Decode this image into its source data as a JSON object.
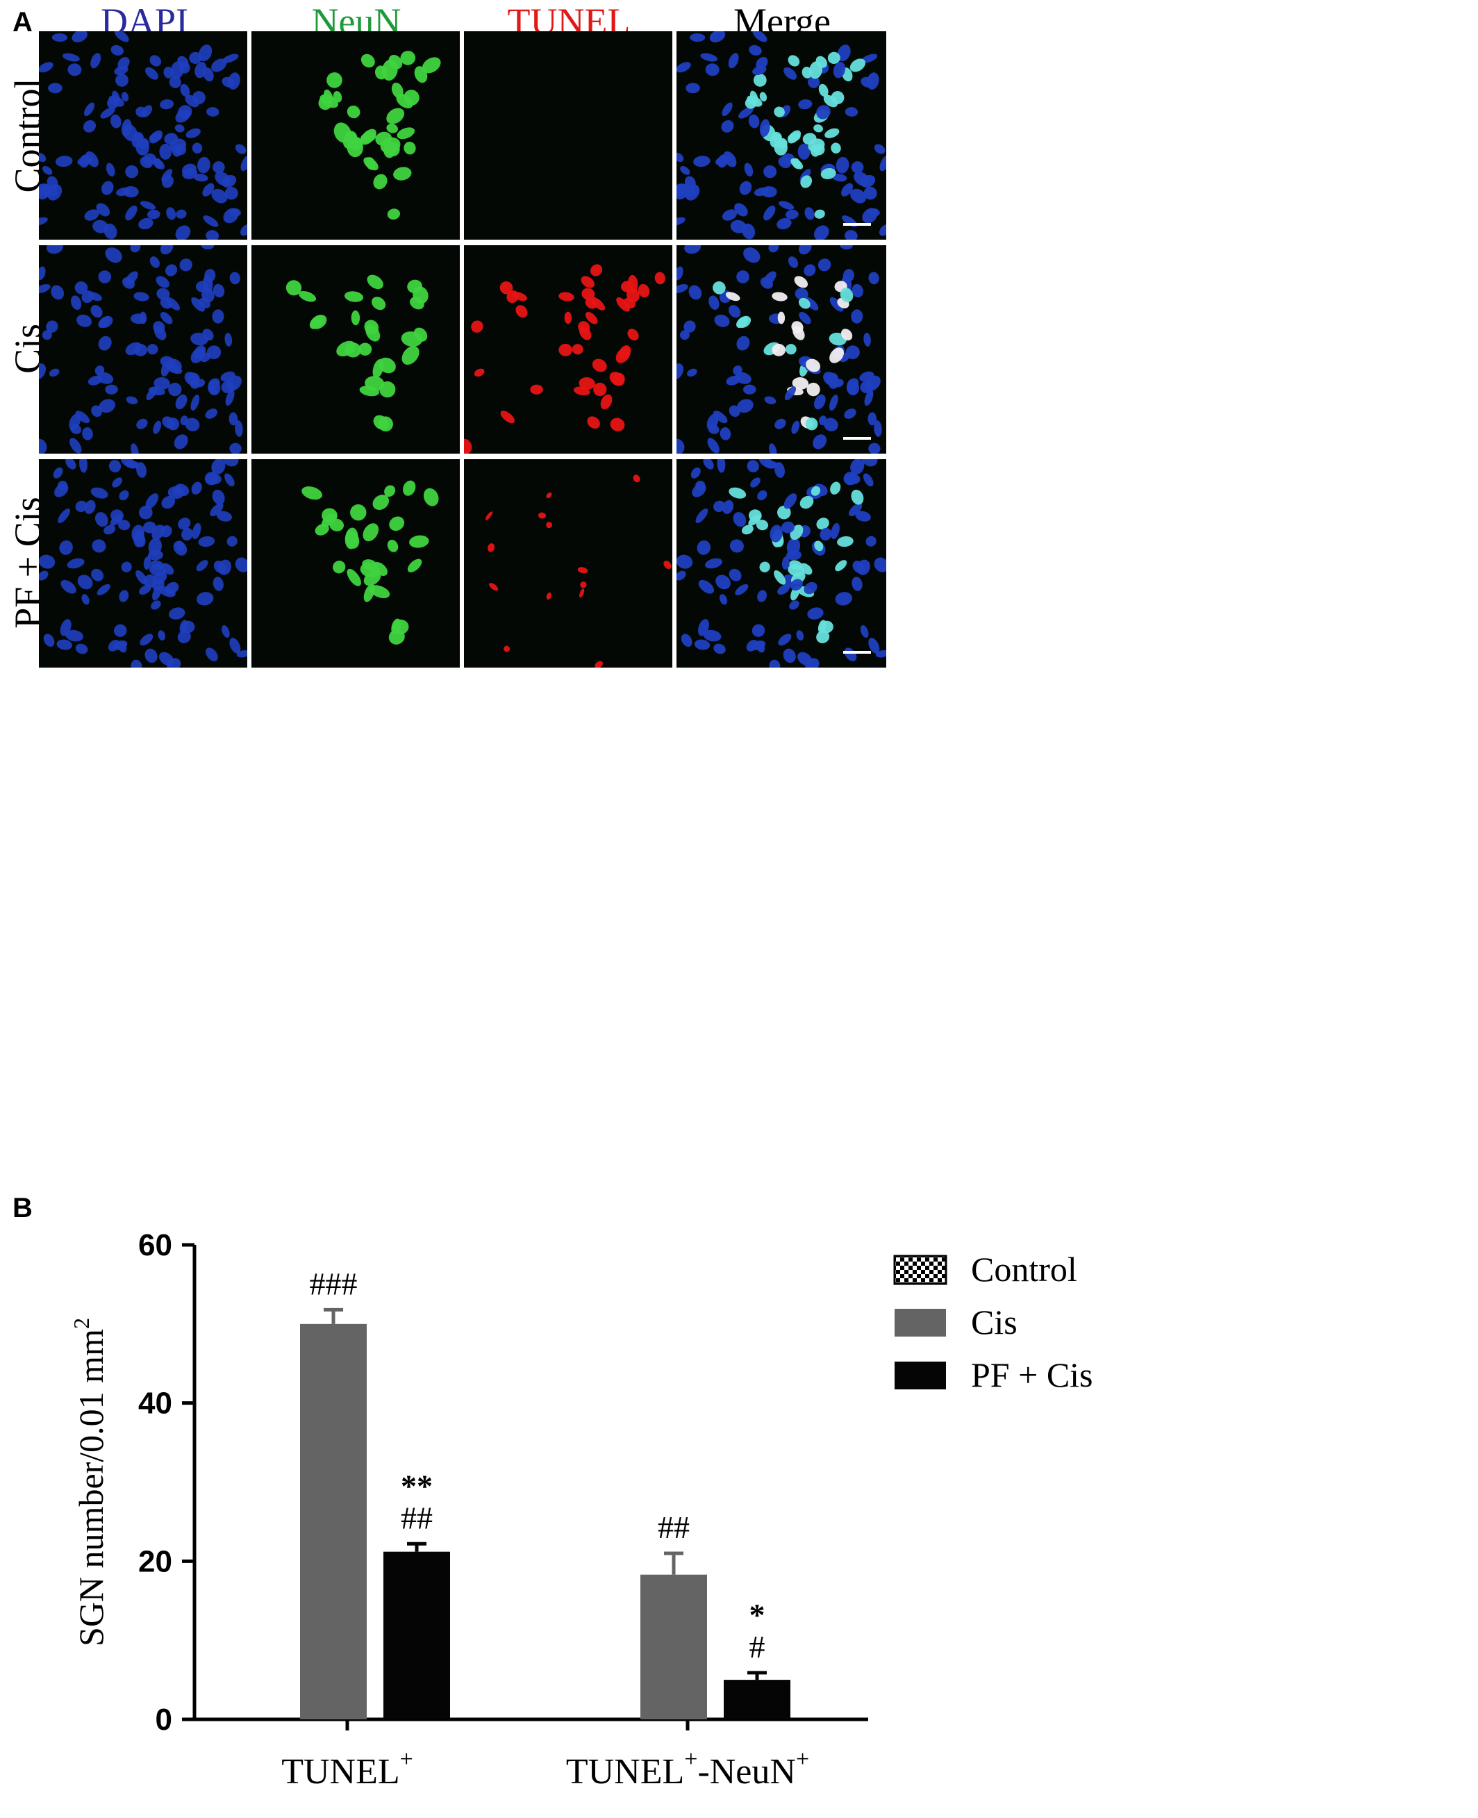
{
  "panel_a": {
    "letter": "A",
    "columns": [
      {
        "label": "DAPI",
        "color": "#2a2a9e"
      },
      {
        "label": "NeuN",
        "color": "#1e9a3a"
      },
      {
        "label": "TUNEL",
        "color": "#e01818"
      },
      {
        "label": "Merge",
        "color": "#000000"
      }
    ],
    "rows": [
      "Control",
      "Cis",
      "PF + Cis"
    ],
    "channel_colors": {
      "dapi": "#1f3fc0",
      "neun": "#3fd43f",
      "tunel": "#e81414",
      "merge_neuron": "#66e0dc",
      "merge_apoptotic": "#f2eef2"
    }
  },
  "panel_b": {
    "letter": "B",
    "chart_data": {
      "type": "bar",
      "title": "",
      "ylabel": "SGN number/0.01 mm",
      "ylabel_superscript": "2",
      "xlabel": "",
      "ylim": [
        0,
        60
      ],
      "yticks": [
        "0",
        "20",
        "40",
        "60"
      ],
      "categories": [
        {
          "label": "TUNEL",
          "sup": "+"
        },
        {
          "label": "TUNEL",
          "sup": "+",
          "label2": "-NeuN",
          "sup2": "+"
        }
      ],
      "series": [
        {
          "name": "Control",
          "color": "checker",
          "values": [
            0,
            0
          ],
          "errors": [
            0,
            0
          ],
          "annotations": [
            [],
            []
          ]
        },
        {
          "name": "Cis",
          "color": "#646464",
          "values": [
            50,
            18.3
          ],
          "errors": [
            1.8,
            2.7
          ],
          "annotations": [
            [
              "###"
            ],
            [
              "##"
            ]
          ]
        },
        {
          "name": "PF + Cis",
          "color": "#050505",
          "values": [
            21.2,
            5
          ],
          "errors": [
            1.0,
            0.9
          ],
          "annotations": [
            [
              "**",
              "##"
            ],
            [
              "*",
              "#"
            ]
          ]
        }
      ],
      "legend_position": "top-right"
    }
  }
}
